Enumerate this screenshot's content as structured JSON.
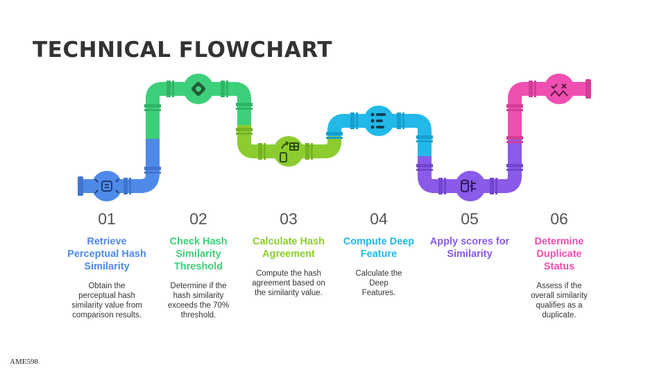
{
  "title": "TECHNICAL FLOWCHART",
  "footer": "AME598",
  "steps": [
    {
      "num": "01",
      "heading": "Retrieve Perceptual Hash Similarity",
      "desc": "Obtain the perceptual hash similarity value from comparison results.",
      "color": "#4f8ae8",
      "icon": "hash-compare-icon"
    },
    {
      "num": "02",
      "heading": "Check Hash Similarity Threshold",
      "desc": "Determine if the hash similarity exceeds the 70% threshold.",
      "color": "#3ecf7a",
      "icon": "threshold-target-icon"
    },
    {
      "num": "03",
      "heading": "Calculate Hash Agreement",
      "desc": "Compute the hash agreement based on the similarity value.",
      "color": "#8ccc2f",
      "icon": "agreement-calc-icon"
    },
    {
      "num": "04",
      "heading": "Compute Deep Feature",
      "desc": "Calculate the Deep Features.",
      "color": "#22b8e8",
      "icon": "feature-list-icon"
    },
    {
      "num": "05",
      "heading": "Apply scores for Similarity",
      "desc": "",
      "color": "#8a5ae8",
      "icon": "score-data-icon"
    },
    {
      "num": "06",
      "heading": "Determine Duplicate Status",
      "desc": "Assess if the overall similarity qualifies as a duplicate.",
      "color": "#ee4fb0",
      "icon": "duplicate-check-icon"
    }
  ]
}
